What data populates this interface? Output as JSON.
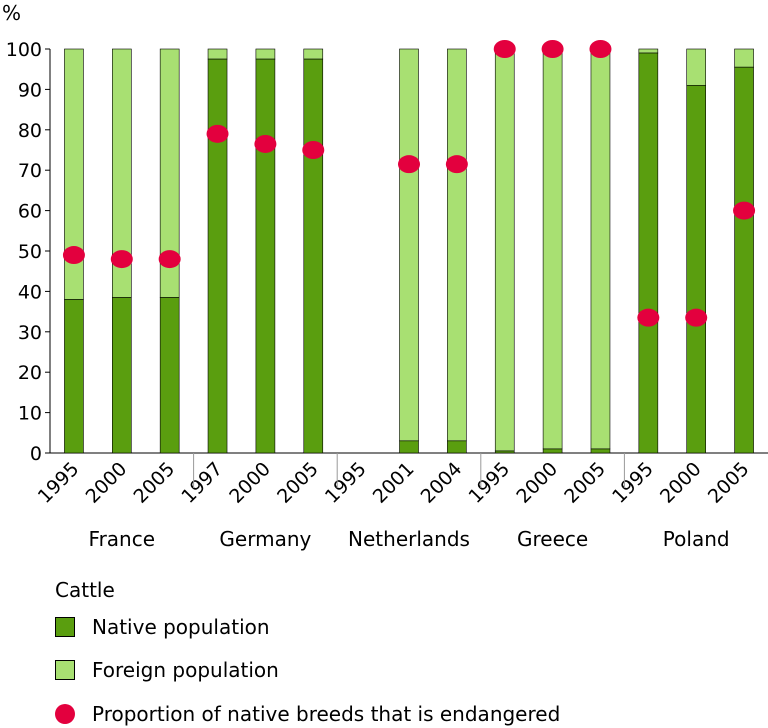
{
  "chart_data": {
    "type": "bar",
    "stacked": true,
    "ylabel": "%",
    "ylim": [
      0,
      100
    ],
    "yticks": [
      0,
      10,
      20,
      30,
      40,
      50,
      60,
      70,
      80,
      90,
      100
    ],
    "grid": false,
    "legend_placement": "bottom",
    "groups": [
      {
        "name": "France",
        "years": [
          "1995",
          "2000",
          "2005"
        ],
        "native": [
          38,
          38.5,
          38.5
        ],
        "endangered": [
          49,
          48,
          48
        ]
      },
      {
        "name": "Germany",
        "years": [
          "1997",
          "2000",
          "2005"
        ],
        "native": [
          97.5,
          97.5,
          97.5
        ],
        "endangered": [
          79,
          76.5,
          75
        ]
      },
      {
        "name": "Netherlands",
        "years": [
          "1995",
          "2001",
          "2004"
        ],
        "native": [
          null,
          3,
          3
        ],
        "endangered": [
          null,
          71.5,
          71.5
        ]
      },
      {
        "name": "Greece",
        "years": [
          "1995",
          "2000",
          "2005"
        ],
        "native": [
          0.5,
          1,
          1
        ],
        "endangered": [
          100,
          100,
          100
        ]
      },
      {
        "name": "Poland",
        "years": [
          "1995",
          "2000",
          "2005"
        ],
        "native": [
          99,
          91,
          95.5
        ],
        "endangered": [
          33.5,
          33.5,
          60
        ]
      }
    ],
    "series": [
      {
        "name": "Native population",
        "color": "#5a9e0f"
      },
      {
        "name": "Foreign population",
        "color": "#a8e072"
      },
      {
        "name": "Proportion of native breeds that is endangered",
        "color": "#e3003e"
      }
    ]
  },
  "legend": {
    "title": "Cattle",
    "items": [
      {
        "label": "Native population",
        "color": "#5a9e0f",
        "kind": "swatch"
      },
      {
        "label": "Foreign population",
        "color": "#a8e072",
        "kind": "swatch"
      },
      {
        "label": "Proportion of native breeds that is endangered",
        "color": "#e3003e",
        "kind": "dot"
      }
    ]
  }
}
